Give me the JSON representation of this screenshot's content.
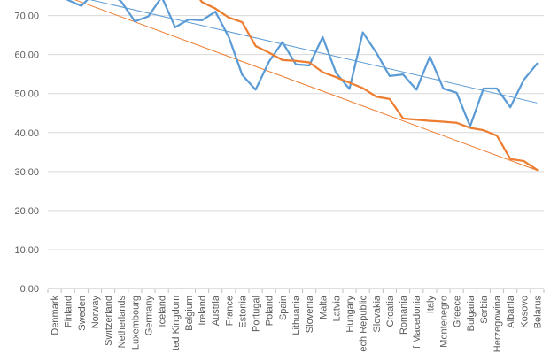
{
  "chart_data": {
    "type": "line",
    "title": "",
    "xlabel": "",
    "ylabel": "",
    "ylim": [
      0,
      75
    ],
    "yticks": [
      "0,00",
      "10,00",
      "20,00",
      "30,00",
      "40,00",
      "50,00",
      "60,00",
      "70,00"
    ],
    "grid": true,
    "categories": [
      "Denmark",
      "Finland",
      "Sweden",
      "Norway",
      "Switzerland",
      "Netherlands",
      "Luxembourg",
      "Germany",
      "Iceland",
      "United Kingdom",
      "Belgium",
      "Ireland",
      "Austria",
      "France",
      "Estonia",
      "Portugal",
      "Poland",
      "Spain",
      "Lithuania",
      "Slovenia",
      "Malta",
      "Latvia",
      "Hungary",
      "Czech Republic",
      "Slovakia",
      "Croatia",
      "Romania",
      "FYR of Macedonia",
      "Italy",
      "Montenegro",
      "Greece",
      "Bulgaria",
      "Serbia",
      "Bosnia and Herzegovina",
      "Albania",
      "Kosovo",
      "Belarus"
    ],
    "category_labels": [
      "Denmark",
      "Finland",
      "Sweden",
      "Norway",
      "Switzerland",
      "Netherlands",
      "Luxembourg",
      "Germany",
      "Iceland",
      "ted Kingdom",
      "Belgium",
      "Ireland",
      "Austria",
      "France",
      "Estonia",
      "Portugal",
      "Poland",
      "Spain",
      "Lithuania",
      "Slovenia",
      "Malta",
      "Latvia",
      "Hungary",
      "ech Republic",
      "Slovakia",
      "Croatia",
      "Romania",
      "f Macedonia",
      "Italy",
      "Montenegro",
      "Greece",
      "Bulgaria",
      "Serbia",
      "Herzegowina",
      "Albania",
      "Kosovo",
      "Belarus"
    ],
    "series": [
      {
        "color": "#5b9bd5",
        "values": [
          76.0,
          74.0,
          72.5,
          76.0,
          76.5,
          73.5,
          68.5,
          69.8,
          74.8,
          67.0,
          69.0,
          68.8,
          71.0,
          64.5,
          54.8,
          51.0,
          58.2,
          63.2,
          57.5,
          57.2,
          64.5,
          55.3,
          51.2,
          65.7,
          60.5,
          54.5,
          54.9,
          51.0,
          59.5,
          51.3,
          50.2,
          41.6,
          51.3,
          51.3,
          46.5,
          53.5,
          57.7
        ]
      },
      {
        "color": "#ed7d31",
        "values": [
          null,
          null,
          null,
          null,
          null,
          null,
          null,
          null,
          null,
          null,
          78.0,
          73.5,
          71.8,
          69.5,
          68.3,
          62.2,
          60.5,
          58.6,
          58.4,
          58.0,
          55.5,
          54.2,
          52.8,
          51.4,
          49.2,
          48.6,
          43.6,
          43.3,
          43.0,
          42.8,
          42.5,
          41.2,
          40.6,
          39.2,
          33.2,
          32.7,
          30.4
        ]
      }
    ],
    "trendlines": [
      {
        "color": "#5b9bd5",
        "start": 76.2,
        "end": 47.6
      },
      {
        "color": "#ed7d31",
        "start": 76.0,
        "end": 30.3
      }
    ]
  }
}
